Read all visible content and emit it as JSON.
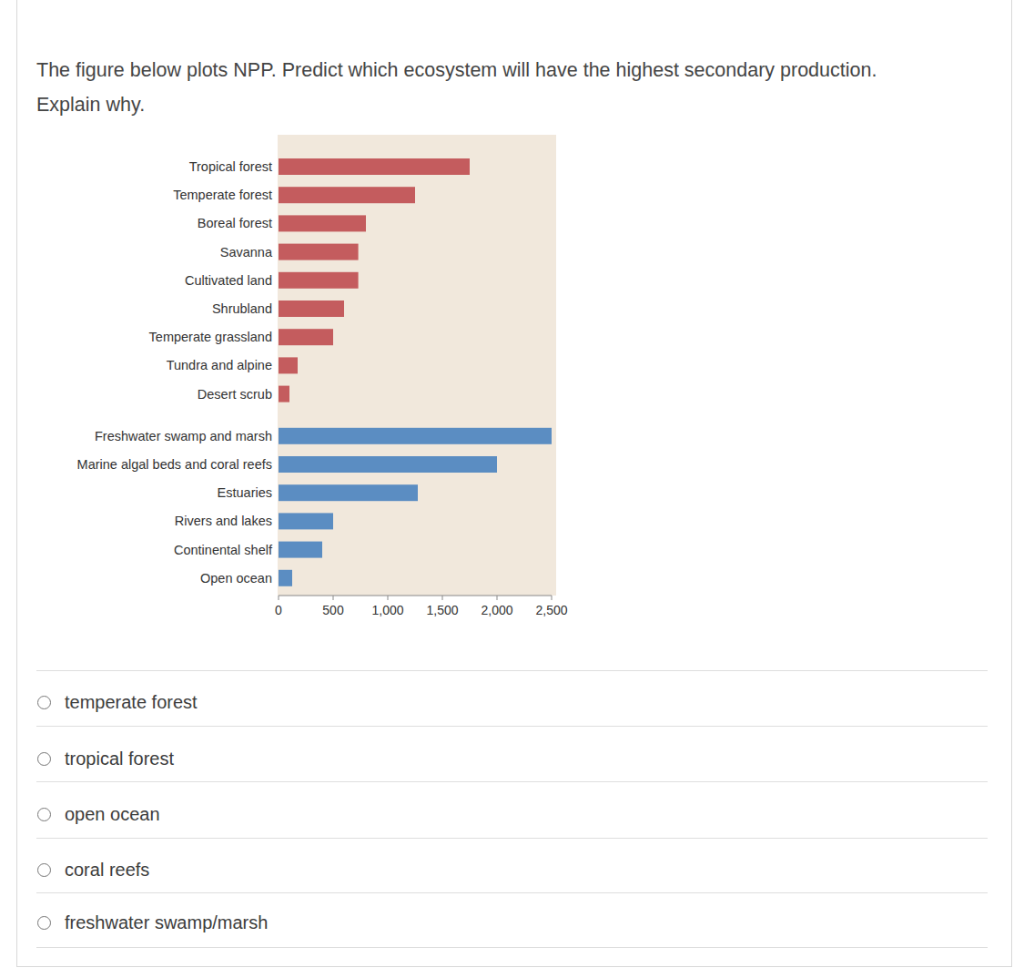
{
  "question_lines": [
    "The figure below plots NPP. Predict which ecosystem will have the highest secondary production.",
    "Explain why."
  ],
  "chart_data": {
    "type": "bar",
    "orientation": "horizontal",
    "categories": [
      "Tropical forest",
      "Temperate forest",
      "Boreal forest",
      "Savanna",
      "Cultivated land",
      "Shrubland",
      "Temperate grassland",
      "Tundra and alpine",
      "Desert scrub",
      "Freshwater swamp and marsh",
      "Marine algal beds and coral reefs",
      "Estuaries",
      "Rivers and lakes",
      "Continental shelf",
      "Open ocean"
    ],
    "values": [
      1750,
      1250,
      800,
      730,
      730,
      600,
      500,
      175,
      100,
      2500,
      2000,
      1275,
      500,
      400,
      125
    ],
    "colors": [
      "#c45c5e",
      "#c45c5e",
      "#c45c5e",
      "#c45c5e",
      "#c45c5e",
      "#c45c5e",
      "#c45c5e",
      "#c45c5e",
      "#c45c5e",
      "#5b8dc2",
      "#5b8dc2",
      "#5b8dc2",
      "#5b8dc2",
      "#5b8dc2",
      "#5b8dc2"
    ],
    "xlim": [
      0,
      2500
    ],
    "xticks": [
      0,
      500,
      {
        "value": 1000,
        "label": "1,000"
      },
      {
        "value": 1500,
        "label": "1,500"
      },
      {
        "value": 2000,
        "label": "2,000"
      },
      {
        "value": 2500,
        "label": "2,500"
      }
    ]
  },
  "options": [
    "temperate forest",
    "tropical forest",
    "open ocean",
    "coral reefs",
    "freshwater swamp/marsh"
  ]
}
